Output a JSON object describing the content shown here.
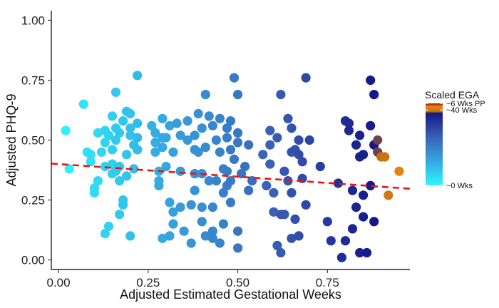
{
  "chart_data": {
    "type": "scatter",
    "xlabel": "Adjusted Estimated Gestational Weeks",
    "ylabel": "Adjusted PHQ-9",
    "xlim": [
      -0.02,
      0.98
    ],
    "ylim": [
      -0.04,
      1.04
    ],
    "x_ticks": [
      0,
      0.25,
      0.5,
      0.75
    ],
    "x_tick_labels": [
      "0.00",
      "0.25",
      "0.50",
      "0.75"
    ],
    "y_ticks": [
      0,
      0.25,
      0.5,
      0.75,
      1.0
    ],
    "y_tick_labels": [
      "0.00",
      "0.25",
      "0.50",
      "0.75",
      "1.00"
    ],
    "grid": false,
    "legend": {
      "title": "Scaled EGA",
      "position": "right",
      "type": "colorbar",
      "labels": [
        {
          "text": "~6 Wks PP",
          "value": 1.0
        },
        {
          "text": "~40 Wks",
          "value": 0.92
        },
        {
          "text": "~0 Wks",
          "value": 0.0
        }
      ],
      "colors": [
        {
          "stop": 0.0,
          "color": "#2ff6ff"
        },
        {
          "stop": 0.3,
          "color": "#35a6df"
        },
        {
          "stop": 0.6,
          "color": "#3a5fb4"
        },
        {
          "stop": 0.88,
          "color": "#141888"
        },
        {
          "stop": 0.9,
          "color": "#c27014"
        },
        {
          "stop": 0.96,
          "color": "#ec8512"
        },
        {
          "stop": 1.0,
          "color": "#8b1c08"
        }
      ]
    },
    "trend_line": {
      "intercept": 0.4,
      "slope": -0.105,
      "color": "#ee1111",
      "style": "dashed"
    },
    "points": [
      {
        "x": 0.02,
        "y": 0.54
      },
      {
        "x": 0.03,
        "y": 0.38
      },
      {
        "x": 0.07,
        "y": 0.65
      },
      {
        "x": 0.08,
        "y": 0.45
      },
      {
        "x": 0.09,
        "y": 0.41
      },
      {
        "x": 0.09,
        "y": 0.44
      },
      {
        "x": 0.1,
        "y": 0.28
      },
      {
        "x": 0.1,
        "y": 0.3
      },
      {
        "x": 0.11,
        "y": 0.53
      },
      {
        "x": 0.11,
        "y": 0.33
      },
      {
        "x": 0.12,
        "y": 0.45
      },
      {
        "x": 0.13,
        "y": 0.54
      },
      {
        "x": 0.13,
        "y": 0.49
      },
      {
        "x": 0.13,
        "y": 0.39
      },
      {
        "x": 0.13,
        "y": 0.11
      },
      {
        "x": 0.14,
        "y": 0.14
      },
      {
        "x": 0.14,
        "y": 0.52
      },
      {
        "x": 0.15,
        "y": 0.6
      },
      {
        "x": 0.15,
        "y": 0.46
      },
      {
        "x": 0.15,
        "y": 0.4
      },
      {
        "x": 0.15,
        "y": 0.36
      },
      {
        "x": 0.16,
        "y": 0.7
      },
      {
        "x": 0.16,
        "y": 0.55
      },
      {
        "x": 0.16,
        "y": 0.5
      },
      {
        "x": 0.16,
        "y": 0.37
      },
      {
        "x": 0.17,
        "y": 0.53
      },
      {
        "x": 0.17,
        "y": 0.39
      },
      {
        "x": 0.17,
        "y": 0.33
      },
      {
        "x": 0.17,
        "y": 0.19
      },
      {
        "x": 0.18,
        "y": 0.58
      },
      {
        "x": 0.18,
        "y": 0.25
      },
      {
        "x": 0.18,
        "y": 0.23
      },
      {
        "x": 0.19,
        "y": 0.62
      },
      {
        "x": 0.19,
        "y": 0.44
      },
      {
        "x": 0.19,
        "y": 0.35
      },
      {
        "x": 0.2,
        "y": 0.61
      },
      {
        "x": 0.2,
        "y": 0.55
      },
      {
        "x": 0.2,
        "y": 0.52
      },
      {
        "x": 0.2,
        "y": 0.1
      },
      {
        "x": 0.21,
        "y": 0.48
      },
      {
        "x": 0.21,
        "y": 0.38
      },
      {
        "x": 0.22,
        "y": 0.77
      },
      {
        "x": 0.22,
        "y": 0.57
      },
      {
        "x": 0.22,
        "y": 0.51
      },
      {
        "x": 0.22,
        "y": 0.46
      },
      {
        "x": 0.26,
        "y": 0.56
      },
      {
        "x": 0.27,
        "y": 0.53
      },
      {
        "x": 0.27,
        "y": 0.49
      },
      {
        "x": 0.27,
        "y": 0.45
      },
      {
        "x": 0.28,
        "y": 0.37
      },
      {
        "x": 0.28,
        "y": 0.33
      },
      {
        "x": 0.28,
        "y": 0.31
      },
      {
        "x": 0.29,
        "y": 0.59
      },
      {
        "x": 0.29,
        "y": 0.51
      },
      {
        "x": 0.29,
        "y": 0.47
      },
      {
        "x": 0.29,
        "y": 0.09
      },
      {
        "x": 0.3,
        "y": 0.51
      },
      {
        "x": 0.3,
        "y": 0.39
      },
      {
        "x": 0.31,
        "y": 0.56
      },
      {
        "x": 0.31,
        "y": 0.24
      },
      {
        "x": 0.31,
        "y": 0.1
      },
      {
        "x": 0.32,
        "y": 0.45
      },
      {
        "x": 0.32,
        "y": 0.2
      },
      {
        "x": 0.32,
        "y": 0.15
      },
      {
        "x": 0.33,
        "y": 0.57
      },
      {
        "x": 0.34,
        "y": 0.52
      },
      {
        "x": 0.34,
        "y": 0.37
      },
      {
        "x": 0.34,
        "y": 0.22
      },
      {
        "x": 0.35,
        "y": 0.12
      },
      {
        "x": 0.36,
        "y": 0.58
      },
      {
        "x": 0.36,
        "y": 0.5
      },
      {
        "x": 0.37,
        "y": 0.07
      },
      {
        "x": 0.37,
        "y": 0.23
      },
      {
        "x": 0.38,
        "y": 0.52
      },
      {
        "x": 0.38,
        "y": 0.46
      },
      {
        "x": 0.38,
        "y": 0.36
      },
      {
        "x": 0.38,
        "y": 0.29
      },
      {
        "x": 0.39,
        "y": 0.61
      },
      {
        "x": 0.39,
        "y": 0.45
      },
      {
        "x": 0.4,
        "y": 0.55
      },
      {
        "x": 0.4,
        "y": 0.36
      },
      {
        "x": 0.4,
        "y": 0.22
      },
      {
        "x": 0.4,
        "y": 0.16
      },
      {
        "x": 0.41,
        "y": 0.69
      },
      {
        "x": 0.41,
        "y": 0.47
      },
      {
        "x": 0.41,
        "y": 0.1
      },
      {
        "x": 0.42,
        "y": 0.6
      },
      {
        "x": 0.42,
        "y": 0.33
      },
      {
        "x": 0.43,
        "y": 0.56
      },
      {
        "x": 0.43,
        "y": 0.22
      },
      {
        "x": 0.43,
        "y": 0.12
      },
      {
        "x": 0.43,
        "y": 0.09
      },
      {
        "x": 0.44,
        "y": 0.5
      },
      {
        "x": 0.44,
        "y": 0.33
      },
      {
        "x": 0.45,
        "y": 0.59
      },
      {
        "x": 0.45,
        "y": 0.45
      },
      {
        "x": 0.45,
        "y": 0.07
      },
      {
        "x": 0.46,
        "y": 0.38
      },
      {
        "x": 0.46,
        "y": 0.28
      },
      {
        "x": 0.46,
        "y": 0.15
      },
      {
        "x": 0.47,
        "y": 0.55
      },
      {
        "x": 0.47,
        "y": 0.51
      },
      {
        "x": 0.47,
        "y": 0.37
      },
      {
        "x": 0.47,
        "y": 0.31
      },
      {
        "x": 0.48,
        "y": 0.58
      },
      {
        "x": 0.48,
        "y": 0.46
      },
      {
        "x": 0.48,
        "y": 0.24
      },
      {
        "x": 0.48,
        "y": 0.33
      },
      {
        "x": 0.49,
        "y": 0.76
      },
      {
        "x": 0.49,
        "y": 0.42
      },
      {
        "x": 0.5,
        "y": 0.69
      },
      {
        "x": 0.5,
        "y": 0.53
      },
      {
        "x": 0.5,
        "y": 0.49
      },
      {
        "x": 0.5,
        "y": 0.12
      },
      {
        "x": 0.5,
        "y": 0.05
      },
      {
        "x": 0.51,
        "y": 0.36
      },
      {
        "x": 0.52,
        "y": 0.39
      },
      {
        "x": 0.53,
        "y": 0.29
      },
      {
        "x": 0.53,
        "y": 0.48
      },
      {
        "x": 0.54,
        "y": 0.33
      },
      {
        "x": 0.57,
        "y": 0.44
      },
      {
        "x": 0.58,
        "y": 0.31
      },
      {
        "x": 0.59,
        "y": 0.54
      },
      {
        "x": 0.59,
        "y": 0.48
      },
      {
        "x": 0.59,
        "y": 0.4
      },
      {
        "x": 0.6,
        "y": 0.28
      },
      {
        "x": 0.6,
        "y": 0.2
      },
      {
        "x": 0.61,
        "y": 0.51
      },
      {
        "x": 0.61,
        "y": 0.06
      },
      {
        "x": 0.62,
        "y": 0.69
      },
      {
        "x": 0.62,
        "y": 0.19
      },
      {
        "x": 0.62,
        "y": 0.03
      },
      {
        "x": 0.63,
        "y": 0.37
      },
      {
        "x": 0.63,
        "y": 0.19
      },
      {
        "x": 0.64,
        "y": 0.59
      },
      {
        "x": 0.64,
        "y": 0.33
      },
      {
        "x": 0.65,
        "y": 0.55
      },
      {
        "x": 0.65,
        "y": 0.45
      },
      {
        "x": 0.65,
        "y": 0.28
      },
      {
        "x": 0.65,
        "y": 0.09
      },
      {
        "x": 0.66,
        "y": 0.46
      },
      {
        "x": 0.66,
        "y": 0.17
      },
      {
        "x": 0.67,
        "y": 0.5
      },
      {
        "x": 0.67,
        "y": 0.44
      },
      {
        "x": 0.67,
        "y": 0.1
      },
      {
        "x": 0.68,
        "y": 0.41
      },
      {
        "x": 0.68,
        "y": 0.34
      },
      {
        "x": 0.69,
        "y": 0.76
      },
      {
        "x": 0.69,
        "y": 0.23
      },
      {
        "x": 0.7,
        "y": 0.5
      },
      {
        "x": 0.73,
        "y": 0.39
      },
      {
        "x": 0.75,
        "y": 0.16
      },
      {
        "x": 0.76,
        "y": 0.08
      },
      {
        "x": 0.78,
        "y": 0.32
      },
      {
        "x": 0.79,
        "y": 0.01
      },
      {
        "x": 0.8,
        "y": 0.58
      },
      {
        "x": 0.8,
        "y": 0.08
      },
      {
        "x": 0.81,
        "y": 0.57
      },
      {
        "x": 0.81,
        "y": 0.54
      },
      {
        "x": 0.82,
        "y": 0.29
      },
      {
        "x": 0.82,
        "y": 0.13
      },
      {
        "x": 0.83,
        "y": 0.22
      },
      {
        "x": 0.83,
        "y": 0.48
      },
      {
        "x": 0.84,
        "y": 0.52
      },
      {
        "x": 0.84,
        "y": 0.43
      },
      {
        "x": 0.84,
        "y": 0.03
      },
      {
        "x": 0.85,
        "y": 0.44
      },
      {
        "x": 0.85,
        "y": 0.27
      },
      {
        "x": 0.85,
        "y": 0.18
      },
      {
        "x": 0.86,
        "y": 0.03
      },
      {
        "x": 0.87,
        "y": 0.75
      },
      {
        "x": 0.87,
        "y": 0.56
      },
      {
        "x": 0.87,
        "y": 0.31
      },
      {
        "x": 0.88,
        "y": 0.69
      },
      {
        "x": 0.88,
        "y": 0.48
      },
      {
        "x": 0.88,
        "y": 0.16
      },
      {
        "x": 0.89,
        "y": 0.45
      },
      {
        "x": 0.89,
        "y": 0.5
      },
      {
        "x": 0.9,
        "y": 0.43
      },
      {
        "x": 0.91,
        "y": 0.43
      },
      {
        "x": 0.92,
        "y": 0.27
      },
      {
        "x": 0.95,
        "y": 0.37
      }
    ]
  }
}
